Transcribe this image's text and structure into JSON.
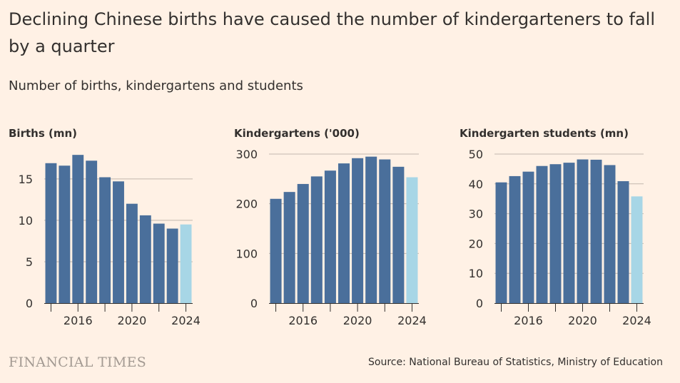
{
  "title": "Declining Chinese births have caused the number of kindergarteners to fall by a quarter",
  "subtitle": "Number of births, kindergartens and students",
  "brand": "FINANCIAL TIMES",
  "source": "Source: National Bureau of Statistics, Ministry of Education",
  "colors": {
    "bar": "#4a6f9b",
    "highlight": "#a7d6e6",
    "grid": "#c2b8ae",
    "axis": "#33302e"
  },
  "chart_data": [
    {
      "type": "bar",
      "title": "Births (mn)",
      "x": [
        2014,
        2015,
        2016,
        2017,
        2018,
        2019,
        2020,
        2021,
        2022,
        2023,
        2024
      ],
      "values": [
        16.9,
        16.6,
        17.9,
        17.2,
        15.2,
        14.7,
        12.0,
        10.6,
        9.6,
        9.0,
        9.5
      ],
      "highlight": [
        2024
      ],
      "yticks": [
        0,
        5,
        10,
        15
      ],
      "ylim": [
        0,
        18
      ],
      "xtick_labels": [
        "2016",
        "2020",
        "2024"
      ]
    },
    {
      "type": "bar",
      "title": "Kindergartens ('000)",
      "x": [
        2014,
        2015,
        2016,
        2017,
        2018,
        2019,
        2020,
        2021,
        2022,
        2023,
        2024
      ],
      "values": [
        209.9,
        223.7,
        239.8,
        255.0,
        266.7,
        281.2,
        291.7,
        294.8,
        289.2,
        274.4,
        253.3
      ],
      "highlight": [
        2024
      ],
      "yticks": [
        0,
        100,
        200,
        300
      ],
      "ylim": [
        0,
        300
      ],
      "xtick_labels": [
        "2016",
        "2020",
        "2024"
      ]
    },
    {
      "type": "bar",
      "title": "Kindergarten students (mn)",
      "x": [
        2014,
        2015,
        2016,
        2017,
        2018,
        2019,
        2020,
        2021,
        2022,
        2023,
        2024
      ],
      "values": [
        40.5,
        42.6,
        44.1,
        46.0,
        46.6,
        47.1,
        48.2,
        48.1,
        46.3,
        40.9,
        35.8
      ],
      "highlight": [
        2024
      ],
      "yticks": [
        0,
        10,
        20,
        30,
        40,
        50
      ],
      "ylim": [
        0,
        50
      ],
      "xtick_labels": [
        "2016",
        "2020",
        "2024"
      ]
    }
  ]
}
